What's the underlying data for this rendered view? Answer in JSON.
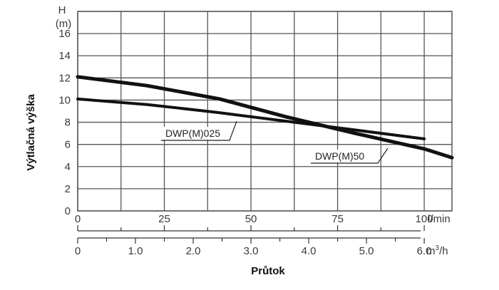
{
  "chart_data": {
    "type": "line",
    "title": "",
    "ylabel": "Výtlačná výška",
    "xlabel": "Průtok",
    "y_axis_name": "H",
    "y_axis_unit": "(m)",
    "y_ticks": [
      "0",
      "2",
      "4",
      "6",
      "8",
      "10",
      "12",
      "14",
      "16"
    ],
    "ylim": [
      0,
      18
    ],
    "x_unit_primary": "l/min",
    "x_ticks_primary": [
      "0",
      "25",
      "50",
      "75",
      "100"
    ],
    "xlim": [
      0,
      108
    ],
    "x_unit_secondary_base": "m",
    "x_unit_secondary_sup": "3",
    "x_unit_secondary_tail": "/h",
    "x_ticks_secondary": [
      "0",
      "1.0",
      "2.0",
      "3.0",
      "4.0",
      "5.0",
      "6.0"
    ],
    "grid": true,
    "series": [
      {
        "name": "DWP(M)025",
        "x": [
          0,
          20,
          40,
          60,
          80,
          100
        ],
        "y": [
          10.1,
          9.6,
          8.9,
          8.1,
          7.3,
          6.5
        ]
      },
      {
        "name": "DWP(M)50",
        "x": [
          0,
          20,
          41,
          60,
          80,
          100,
          108
        ],
        "y": [
          12.1,
          11.3,
          10.1,
          8.5,
          7.0,
          5.6,
          4.8
        ]
      }
    ],
    "colors": {
      "line": "#111111",
      "grid": "#555555",
      "text": "#3a3a3a"
    }
  }
}
